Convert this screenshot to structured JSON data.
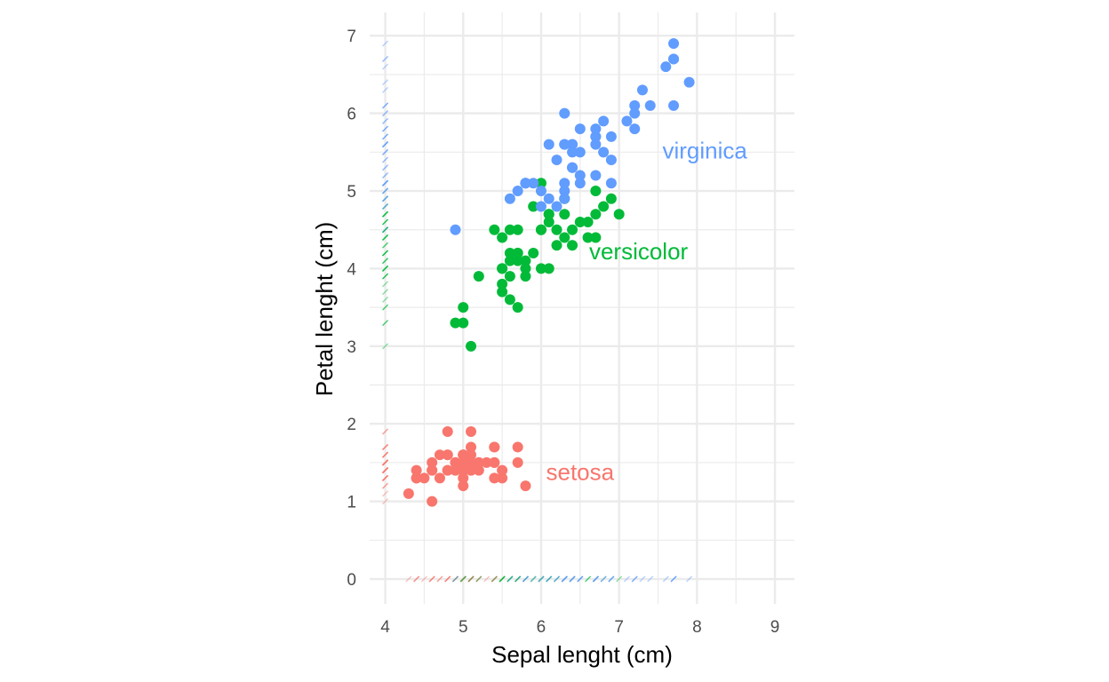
{
  "chart_data": {
    "type": "scatter",
    "title": "",
    "xlabel": "Sepal lenght (cm)",
    "ylabel": "Petal lenght (cm)",
    "xlim": [
      3.8,
      9.25
    ],
    "ylim": [
      -0.32,
      7.3
    ],
    "x_ticks": [
      4,
      5,
      6,
      7,
      8,
      9
    ],
    "y_ticks": [
      0,
      1,
      2,
      3,
      4,
      5,
      6,
      7
    ],
    "grid": true,
    "legend": "direct labels next to each cluster",
    "rug": "marginal rug marks on the x axis (at y = 0) and y axis (at x = 4)",
    "series": [
      {
        "name": "setosa",
        "color": "#F8766D",
        "label_position": {
          "x": 6.5,
          "y": 1.38
        },
        "points": [
          [
            5.1,
            1.4
          ],
          [
            4.9,
            1.4
          ],
          [
            4.7,
            1.3
          ],
          [
            4.6,
            1.5
          ],
          [
            5.0,
            1.4
          ],
          [
            5.4,
            1.7
          ],
          [
            4.6,
            1.4
          ],
          [
            5.0,
            1.5
          ],
          [
            4.4,
            1.4
          ],
          [
            4.9,
            1.5
          ],
          [
            5.4,
            1.5
          ],
          [
            4.8,
            1.6
          ],
          [
            4.8,
            1.4
          ],
          [
            4.3,
            1.1
          ],
          [
            5.8,
            1.2
          ],
          [
            5.7,
            1.5
          ],
          [
            5.4,
            1.3
          ],
          [
            5.1,
            1.4
          ],
          [
            5.7,
            1.7
          ],
          [
            5.1,
            1.5
          ],
          [
            5.4,
            1.7
          ],
          [
            5.1,
            1.5
          ],
          [
            4.6,
            1.0
          ],
          [
            5.1,
            1.7
          ],
          [
            4.8,
            1.9
          ],
          [
            5.0,
            1.6
          ],
          [
            5.0,
            1.6
          ],
          [
            5.2,
            1.5
          ],
          [
            5.2,
            1.4
          ],
          [
            4.7,
            1.6
          ],
          [
            4.8,
            1.6
          ],
          [
            5.4,
            1.5
          ],
          [
            5.2,
            1.5
          ],
          [
            5.5,
            1.4
          ],
          [
            4.9,
            1.5
          ],
          [
            5.0,
            1.2
          ],
          [
            5.5,
            1.3
          ],
          [
            4.9,
            1.4
          ],
          [
            4.4,
            1.3
          ],
          [
            5.1,
            1.5
          ],
          [
            5.0,
            1.3
          ],
          [
            4.5,
            1.3
          ],
          [
            4.4,
            1.3
          ],
          [
            5.0,
            1.6
          ],
          [
            5.1,
            1.9
          ],
          [
            4.8,
            1.4
          ],
          [
            5.1,
            1.6
          ],
          [
            4.6,
            1.4
          ],
          [
            5.3,
            1.5
          ],
          [
            5.0,
            1.4
          ]
        ]
      },
      {
        "name": "versicolor",
        "color": "#00BA38",
        "label_position": {
          "x": 7.25,
          "y": 4.22
        },
        "points": [
          [
            7.0,
            4.7
          ],
          [
            6.4,
            4.5
          ],
          [
            6.9,
            4.9
          ],
          [
            5.5,
            4.0
          ],
          [
            6.5,
            4.6
          ],
          [
            5.7,
            4.5
          ],
          [
            6.3,
            4.7
          ],
          [
            4.9,
            3.3
          ],
          [
            6.6,
            4.6
          ],
          [
            5.2,
            3.9
          ],
          [
            5.0,
            3.5
          ],
          [
            5.9,
            4.2
          ],
          [
            6.0,
            4.0
          ],
          [
            6.1,
            4.7
          ],
          [
            5.6,
            3.6
          ],
          [
            6.7,
            4.4
          ],
          [
            5.6,
            4.5
          ],
          [
            5.8,
            4.1
          ],
          [
            6.2,
            4.5
          ],
          [
            5.6,
            3.9
          ],
          [
            5.9,
            4.8
          ],
          [
            6.1,
            4.0
          ],
          [
            6.3,
            4.9
          ],
          [
            6.1,
            4.7
          ],
          [
            6.4,
            4.3
          ],
          [
            6.6,
            4.4
          ],
          [
            6.8,
            4.8
          ],
          [
            6.7,
            5.0
          ],
          [
            6.0,
            4.5
          ],
          [
            5.7,
            3.5
          ],
          [
            5.5,
            3.8
          ],
          [
            5.5,
            3.7
          ],
          [
            5.8,
            3.9
          ],
          [
            6.0,
            5.1
          ],
          [
            5.4,
            4.5
          ],
          [
            6.0,
            4.5
          ],
          [
            6.7,
            4.7
          ],
          [
            6.3,
            4.4
          ],
          [
            5.6,
            4.1
          ],
          [
            5.5,
            4.0
          ],
          [
            5.5,
            4.4
          ],
          [
            6.1,
            4.6
          ],
          [
            5.8,
            4.0
          ],
          [
            5.0,
            3.3
          ],
          [
            5.6,
            4.2
          ],
          [
            5.7,
            4.2
          ],
          [
            5.7,
            4.2
          ],
          [
            6.2,
            4.3
          ],
          [
            5.1,
            3.0
          ],
          [
            5.7,
            4.1
          ]
        ]
      },
      {
        "name": "virginica",
        "color": "#619CFF",
        "label_position": {
          "x": 8.1,
          "y": 5.52
        },
        "points": [
          [
            6.3,
            6.0
          ],
          [
            5.8,
            5.1
          ],
          [
            7.1,
            5.9
          ],
          [
            6.3,
            5.6
          ],
          [
            6.5,
            5.8
          ],
          [
            7.6,
            6.6
          ],
          [
            4.9,
            4.5
          ],
          [
            7.3,
            6.3
          ],
          [
            6.7,
            5.8
          ],
          [
            7.2,
            6.1
          ],
          [
            6.5,
            5.1
          ],
          [
            6.4,
            5.3
          ],
          [
            6.8,
            5.5
          ],
          [
            5.7,
            5.0
          ],
          [
            5.8,
            5.1
          ],
          [
            6.4,
            5.3
          ],
          [
            6.5,
            5.5
          ],
          [
            7.7,
            6.7
          ],
          [
            7.7,
            6.9
          ],
          [
            6.0,
            5.0
          ],
          [
            6.9,
            5.7
          ],
          [
            5.6,
            4.9
          ],
          [
            7.7,
            6.7
          ],
          [
            6.3,
            4.9
          ],
          [
            6.7,
            5.7
          ],
          [
            7.2,
            6.0
          ],
          [
            6.2,
            4.8
          ],
          [
            6.1,
            4.9
          ],
          [
            6.4,
            5.6
          ],
          [
            7.2,
            5.8
          ],
          [
            7.4,
            6.1
          ],
          [
            7.9,
            6.4
          ],
          [
            6.4,
            5.6
          ],
          [
            6.3,
            5.1
          ],
          [
            6.1,
            5.6
          ],
          [
            7.7,
            6.1
          ],
          [
            6.3,
            5.6
          ],
          [
            6.4,
            5.5
          ],
          [
            6.0,
            4.8
          ],
          [
            6.9,
            5.4
          ],
          [
            6.7,
            5.6
          ],
          [
            6.9,
            5.1
          ],
          [
            5.8,
            5.1
          ],
          [
            6.8,
            5.9
          ],
          [
            6.7,
            5.7
          ],
          [
            6.7,
            5.2
          ],
          [
            6.3,
            5.0
          ],
          [
            6.5,
            5.2
          ],
          [
            6.2,
            5.4
          ],
          [
            5.9,
            5.1
          ]
        ]
      }
    ]
  }
}
